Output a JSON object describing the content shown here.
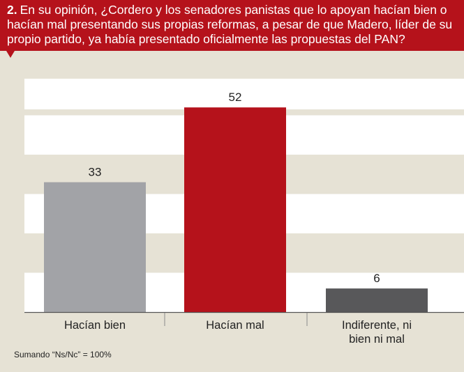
{
  "question": {
    "number": "2.",
    "text": "En su opinión, ¿Cordero y los senadores panistas que lo apoyan hacían bien o hacían mal presentando sus propias reformas, a pesar de que Madero, líder de su propio partido, ya había presentado oficialmente las propuestas del PAN?"
  },
  "footnote": "Sumando “Ns/Nc” = 100%",
  "colors": {
    "header": "#b5121b",
    "background": "#e6e2d5",
    "band": "#ffffff"
  },
  "chart_data": {
    "type": "bar",
    "categories": [
      "Hacían bien",
      "Hacían mal",
      "Indiferente, ni bien ni mal"
    ],
    "category_lines": [
      [
        "Hacían bien"
      ],
      [
        "Hacían mal"
      ],
      [
        "Indiferente, ni",
        "bien ni mal"
      ]
    ],
    "values": [
      33,
      52,
      6
    ],
    "value_labels": [
      "33",
      "52",
      "6"
    ],
    "bar_colors": [
      "#a2a3a7",
      "#b5121b",
      "#58585a"
    ],
    "ylim": [
      0,
      60
    ],
    "grid": "alternating horizontal white bands",
    "title": "",
    "xlabel": "",
    "ylabel": ""
  }
}
